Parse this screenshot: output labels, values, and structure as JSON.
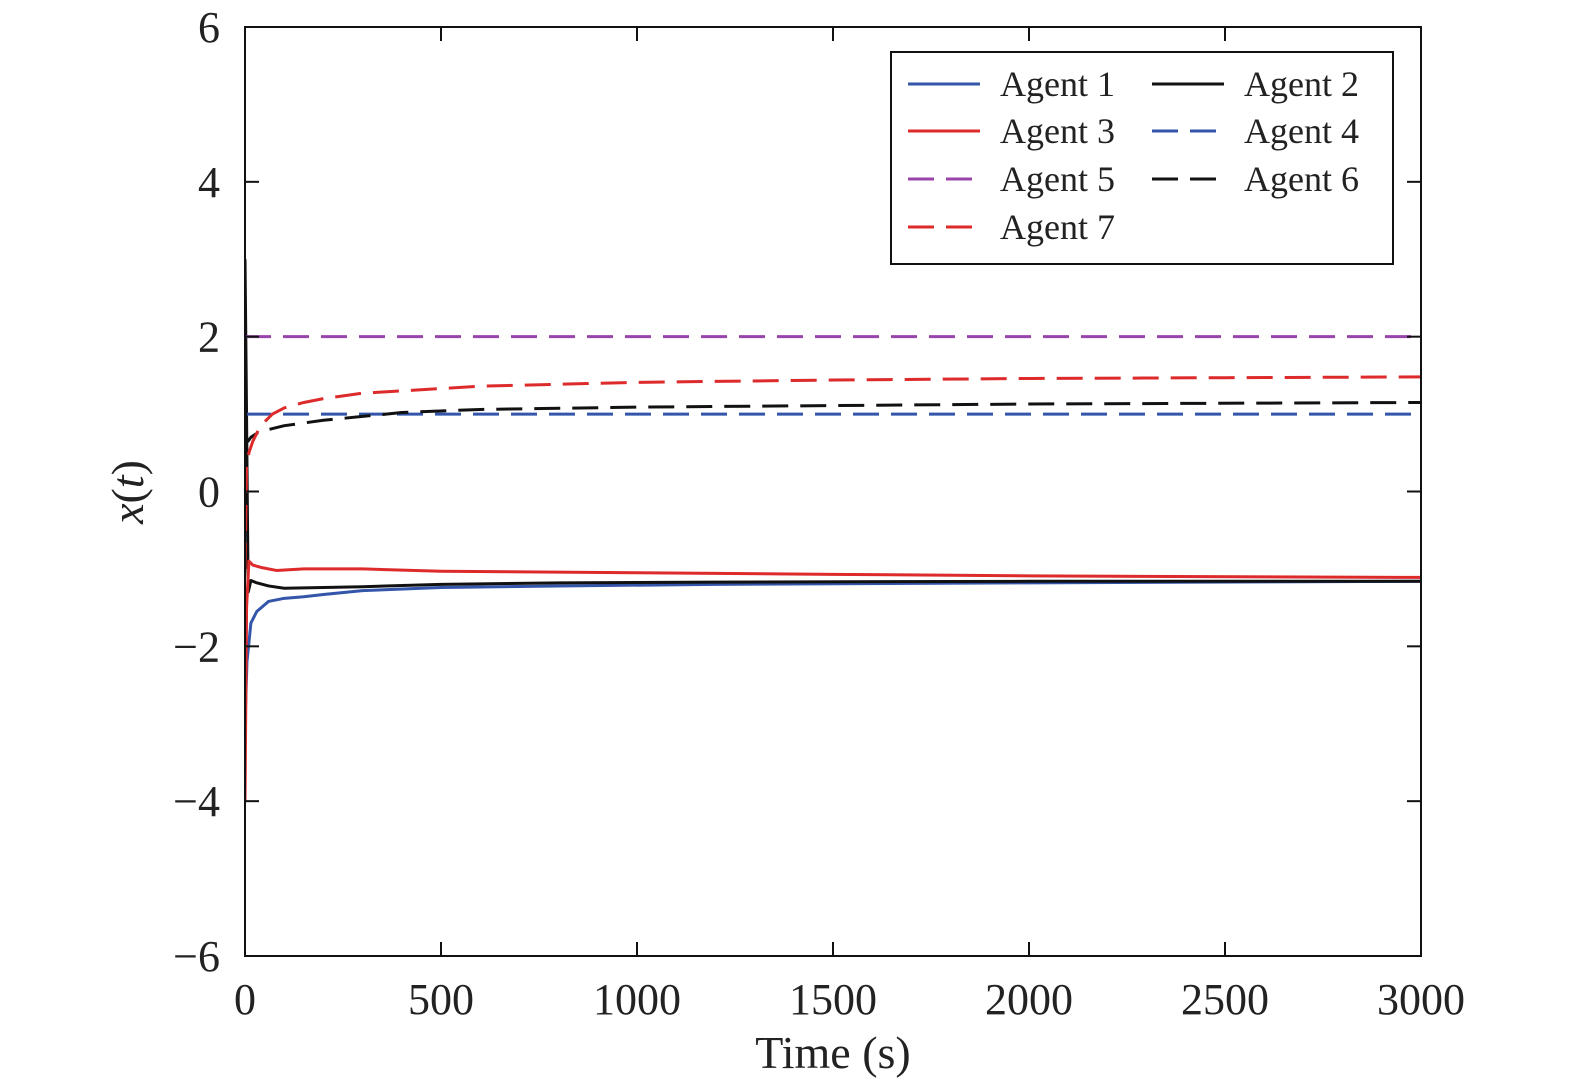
{
  "chart_data": {
    "type": "line",
    "title": "",
    "xlabel": "Time (s)",
    "ylabel_main": "x",
    "ylabel_var": "t",
    "xlim": [
      0,
      3000
    ],
    "ylim": [
      -6,
      6
    ],
    "xticks": [
      0,
      500,
      1000,
      1500,
      2000,
      2500,
      3000
    ],
    "xtick_labels": [
      "0",
      "500",
      "1000",
      "1500",
      "2000",
      "2500",
      "3000"
    ],
    "yticks": [
      -6,
      -4,
      -2,
      0,
      2,
      4,
      6
    ],
    "ytick_labels": [
      "−6",
      "−4",
      "−2",
      "0",
      "2",
      "4",
      "6"
    ],
    "grid": false,
    "legend_position": "top-right",
    "legend_columns": 2,
    "series": [
      {
        "name": "Agent 1",
        "color": "#3355aa",
        "style": "solid",
        "x": [
          0,
          5,
          15,
          30,
          60,
          100,
          150,
          200,
          300,
          500,
          800,
          1200,
          2000,
          3000
        ],
        "y": [
          -3.0,
          -2.2,
          -1.7,
          -1.55,
          -1.42,
          -1.38,
          -1.36,
          -1.33,
          -1.28,
          -1.24,
          -1.22,
          -1.2,
          -1.18,
          -1.16
        ]
      },
      {
        "name": "Agent 2",
        "color": "#111111",
        "style": "solid",
        "x": [
          0,
          3,
          8,
          15,
          30,
          60,
          100,
          200,
          300,
          500,
          800,
          1200,
          2000,
          3000
        ],
        "y": [
          3.0,
          1.5,
          -1.3,
          -1.15,
          -1.18,
          -1.22,
          -1.25,
          -1.24,
          -1.23,
          -1.2,
          -1.18,
          -1.17,
          -1.16,
          -1.16
        ]
      },
      {
        "name": "Agent 3",
        "color": "#dd2a2a",
        "style": "solid",
        "x": [
          0,
          4,
          10,
          20,
          40,
          80,
          150,
          300,
          500,
          1000,
          1500,
          2000,
          3000
        ],
        "y": [
          -4.0,
          -1.5,
          -0.9,
          -0.95,
          -0.98,
          -1.02,
          -1.0,
          -1.0,
          -1.03,
          -1.05,
          -1.07,
          -1.09,
          -1.11
        ]
      },
      {
        "name": "Agent 4",
        "color": "#3355aa",
        "style": "dash",
        "x": [
          0,
          3000
        ],
        "y": [
          1.0,
          1.0
        ]
      },
      {
        "name": "Agent 5",
        "color": "#9944aa",
        "style": "dash",
        "x": [
          0,
          3000
        ],
        "y": [
          2.0,
          2.0
        ]
      },
      {
        "name": "Agent 6",
        "color": "#111111",
        "style": "dash",
        "x": [
          0,
          3,
          8,
          15,
          30,
          60,
          100,
          200,
          300,
          400,
          600,
          1000,
          1500,
          2000,
          3000
        ],
        "y": [
          1.3,
          0.7,
          0.65,
          0.7,
          0.75,
          0.8,
          0.85,
          0.92,
          0.97,
          1.02,
          1.06,
          1.09,
          1.11,
          1.13,
          1.15
        ]
      },
      {
        "name": "Agent 7",
        "color": "#dd2a2a",
        "style": "dash",
        "x": [
          0,
          4,
          10,
          20,
          40,
          70,
          100,
          150,
          200,
          300,
          400,
          600,
          1000,
          1500,
          2000,
          2500,
          3000
        ],
        "y": [
          -1.0,
          0.3,
          0.5,
          0.65,
          0.85,
          1.0,
          1.08,
          1.15,
          1.2,
          1.27,
          1.3,
          1.36,
          1.41,
          1.44,
          1.46,
          1.47,
          1.48
        ]
      }
    ]
  }
}
